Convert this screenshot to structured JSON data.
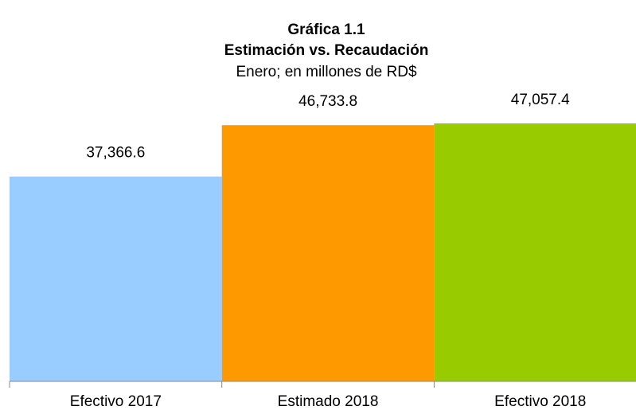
{
  "chart_data": {
    "type": "bar",
    "title": "Gráfica 1.1",
    "subtitle": [
      "Estimación vs. Recaudación",
      "Enero; en millones de RD$"
    ],
    "categories": [
      "Efectivo 2017",
      "Estimado 2018",
      "Efectivo 2018"
    ],
    "values": [
      37366.6,
      46733.8,
      47057.4
    ],
    "value_labels": [
      "37,366.6",
      "46,733.8",
      "47,057.4"
    ],
    "colors": [
      "#99ccff",
      "#ff9900",
      "#99cc00"
    ]
  }
}
